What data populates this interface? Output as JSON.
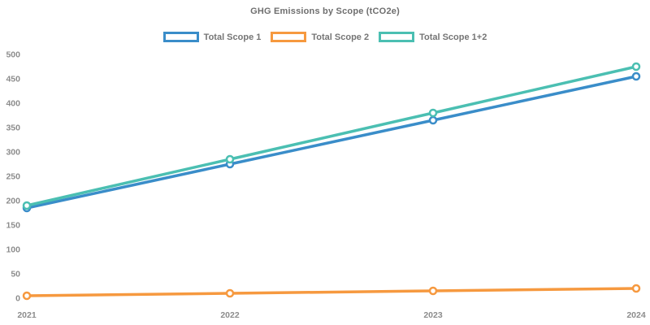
{
  "title": "GHG Emissions by Scope (tCO2e)",
  "colors": {
    "scope1_blue": "#3a8dc9",
    "scope2_orange": "#f6993f",
    "scope12_teal": "#4bbfb2",
    "title_gray": "#6e6e6e",
    "tick_gray": "#8c8c8c",
    "background": "#ffffff"
  },
  "legend": [
    {
      "label": "Total Scope 1",
      "color": "#3a8dc9"
    },
    {
      "label": "Total Scope 2",
      "color": "#f6993f"
    },
    {
      "label": "Total Scope 1+2",
      "color": "#4bbfb2"
    }
  ],
  "chart_data": {
    "type": "line",
    "title": "GHG Emissions by Scope (tCO2e)",
    "xlabel": "",
    "ylabel": "",
    "x": [
      "2021",
      "2022",
      "2023",
      "2024"
    ],
    "series": [
      {
        "name": "Total Scope 1",
        "color": "#3a8dc9",
        "values": [
          185,
          275,
          365,
          455
        ]
      },
      {
        "name": "Total Scope 2",
        "color": "#f6993f",
        "values": [
          5,
          10,
          15,
          20
        ]
      },
      {
        "name": "Total Scope 1+2",
        "color": "#4bbfb2",
        "values": [
          190,
          285,
          380,
          475
        ]
      }
    ],
    "ylim": [
      0,
      500
    ],
    "ytick_step": 50,
    "yticks": [
      0,
      50,
      100,
      150,
      200,
      250,
      300,
      350,
      400,
      450,
      500
    ],
    "grid": false,
    "axis_lines": false,
    "marker": "open-circle",
    "legend_position": "top-center"
  }
}
